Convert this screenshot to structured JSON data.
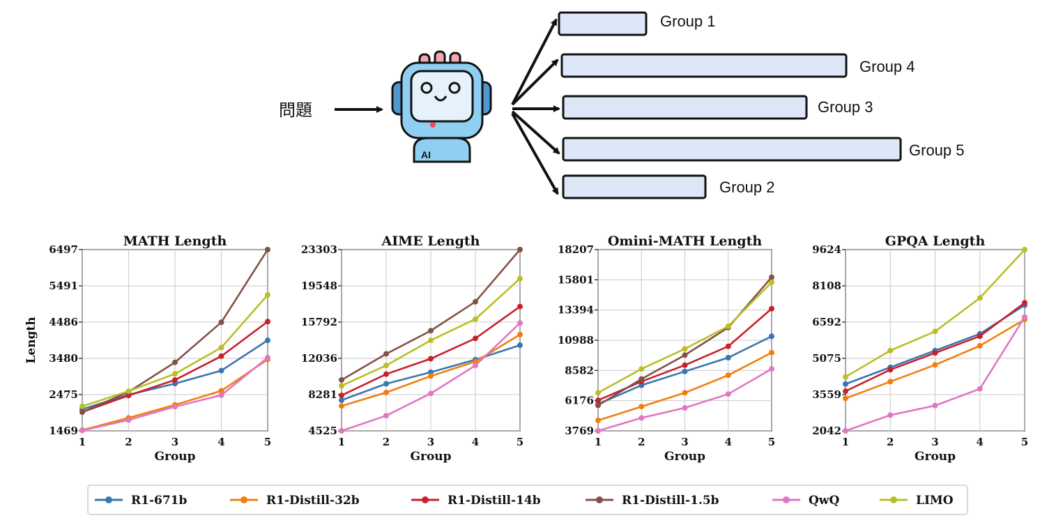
{
  "diagram": {
    "question_label": "問題",
    "robot_badge": "AI",
    "groups": [
      {
        "label": "Group 1",
        "length_rank": 1
      },
      {
        "label": "Group 4",
        "length_rank": 4
      },
      {
        "label": "Group 3",
        "length_rank": 3
      },
      {
        "label": "Group 5",
        "length_rank": 5
      },
      {
        "label": "Group 2",
        "length_rank": 2
      }
    ],
    "colors": {
      "bar_fill": "#dde7f7",
      "bar_stroke": "#111111",
      "robot_face": "#8fd0f2",
      "robot_screen": "#e6f2fb"
    }
  },
  "legend": [
    {
      "name": "R1-671b",
      "color": "#3a75b0"
    },
    {
      "name": "R1-Distill-32b",
      "color": "#f07f0e"
    },
    {
      "name": "R1-Distill-14b",
      "color": "#c8202c"
    },
    {
      "name": "R1-Distill-1.5b",
      "color": "#835147"
    },
    {
      "name": "QwQ",
      "color": "#df77c2"
    },
    {
      "name": "LIMO",
      "color": "#b9bf25"
    }
  ],
  "chart_data": [
    {
      "type": "line",
      "title": "MATH Length",
      "xlabel": "Group",
      "ylabel": "Length",
      "x": [
        1,
        2,
        3,
        4,
        5
      ],
      "ylim": [
        1469,
        6497
      ],
      "yticks": [
        1469,
        2475,
        3480,
        4486,
        5491,
        6497
      ],
      "grid": true,
      "series": [
        {
          "name": "R1-671b",
          "values": [
            2070,
            2470,
            2780,
            3140,
            3980
          ]
        },
        {
          "name": "R1-Distill-32b",
          "values": [
            1490,
            1830,
            2190,
            2580,
            3450
          ]
        },
        {
          "name": "R1-Distill-14b",
          "values": [
            1990,
            2450,
            2880,
            3540,
            4500
          ]
        },
        {
          "name": "R1-Distill-1.5b",
          "values": [
            1990,
            2550,
            3370,
            4480,
            6497
          ]
        },
        {
          "name": "QwQ",
          "values": [
            1480,
            1770,
            2140,
            2460,
            3500
          ]
        },
        {
          "name": "LIMO",
          "values": [
            2150,
            2570,
            3050,
            3780,
            5240
          ]
        }
      ]
    },
    {
      "type": "line",
      "title": "AIME Length",
      "xlabel": "Group",
      "ylabel": "",
      "x": [
        1,
        2,
        3,
        4,
        5
      ],
      "ylim": [
        4525,
        23303
      ],
      "yticks": [
        4525,
        8281,
        12036,
        15792,
        19548,
        23303
      ],
      "grid": true,
      "series": [
        {
          "name": "R1-671b",
          "values": [
            7700,
            9400,
            10600,
            11900,
            13400
          ]
        },
        {
          "name": "R1-Distill-32b",
          "values": [
            7100,
            8500,
            10200,
            11700,
            14500
          ]
        },
        {
          "name": "R1-Distill-14b",
          "values": [
            8200,
            10400,
            12000,
            14100,
            17400
          ]
        },
        {
          "name": "R1-Distill-1.5b",
          "values": [
            9800,
            12500,
            14900,
            17900,
            23303
          ]
        },
        {
          "name": "QwQ",
          "values": [
            4525,
            6100,
            8400,
            11300,
            15700
          ]
        },
        {
          "name": "LIMO",
          "values": [
            9200,
            11300,
            13900,
            16100,
            20300
          ]
        }
      ]
    },
    {
      "type": "line",
      "title": "Omini-MATH Length",
      "xlabel": "Group",
      "ylabel": "",
      "x": [
        1,
        2,
        3,
        4,
        5
      ],
      "ylim": [
        3769,
        18207
      ],
      "yticks": [
        3769,
        6176,
        8582,
        10988,
        13394,
        15801,
        18207
      ],
      "grid": true,
      "series": [
        {
          "name": "R1-671b",
          "values": [
            5900,
            7400,
            8500,
            9600,
            11300
          ]
        },
        {
          "name": "R1-Distill-32b",
          "values": [
            4600,
            5700,
            6800,
            8200,
            10000
          ]
        },
        {
          "name": "R1-Distill-14b",
          "values": [
            6200,
            7700,
            9000,
            10500,
            13500
          ]
        },
        {
          "name": "R1-Distill-1.5b",
          "values": [
            5800,
            7900,
            9800,
            12000,
            16000
          ]
        },
        {
          "name": "QwQ",
          "values": [
            3769,
            4800,
            5600,
            6700,
            8700
          ]
        },
        {
          "name": "LIMO",
          "values": [
            6800,
            8700,
            10300,
            12100,
            15600
          ]
        }
      ]
    },
    {
      "type": "line",
      "title": "GPQA Length",
      "xlabel": "Group",
      "ylabel": "",
      "x": [
        1,
        2,
        3,
        4,
        5
      ],
      "ylim": [
        2042,
        9624
      ],
      "yticks": [
        2042,
        3559,
        5075,
        6592,
        8108,
        9624
      ],
      "grid": true,
      "series": [
        {
          "name": "R1-671b",
          "values": [
            4000,
            4700,
            5400,
            6100,
            7300
          ]
        },
        {
          "name": "R1-Distill-32b",
          "values": [
            3400,
            4100,
            4800,
            5600,
            6700
          ]
        },
        {
          "name": "R1-Distill-14b",
          "values": [
            3700,
            4600,
            5300,
            6000,
            7400
          ]
        },
        {
          "name": "QwQ",
          "values": [
            2042,
            2700,
            3100,
            3800,
            6800
          ]
        },
        {
          "name": "LIMO",
          "values": [
            4300,
            5400,
            6200,
            7600,
            9624
          ]
        }
      ]
    }
  ]
}
